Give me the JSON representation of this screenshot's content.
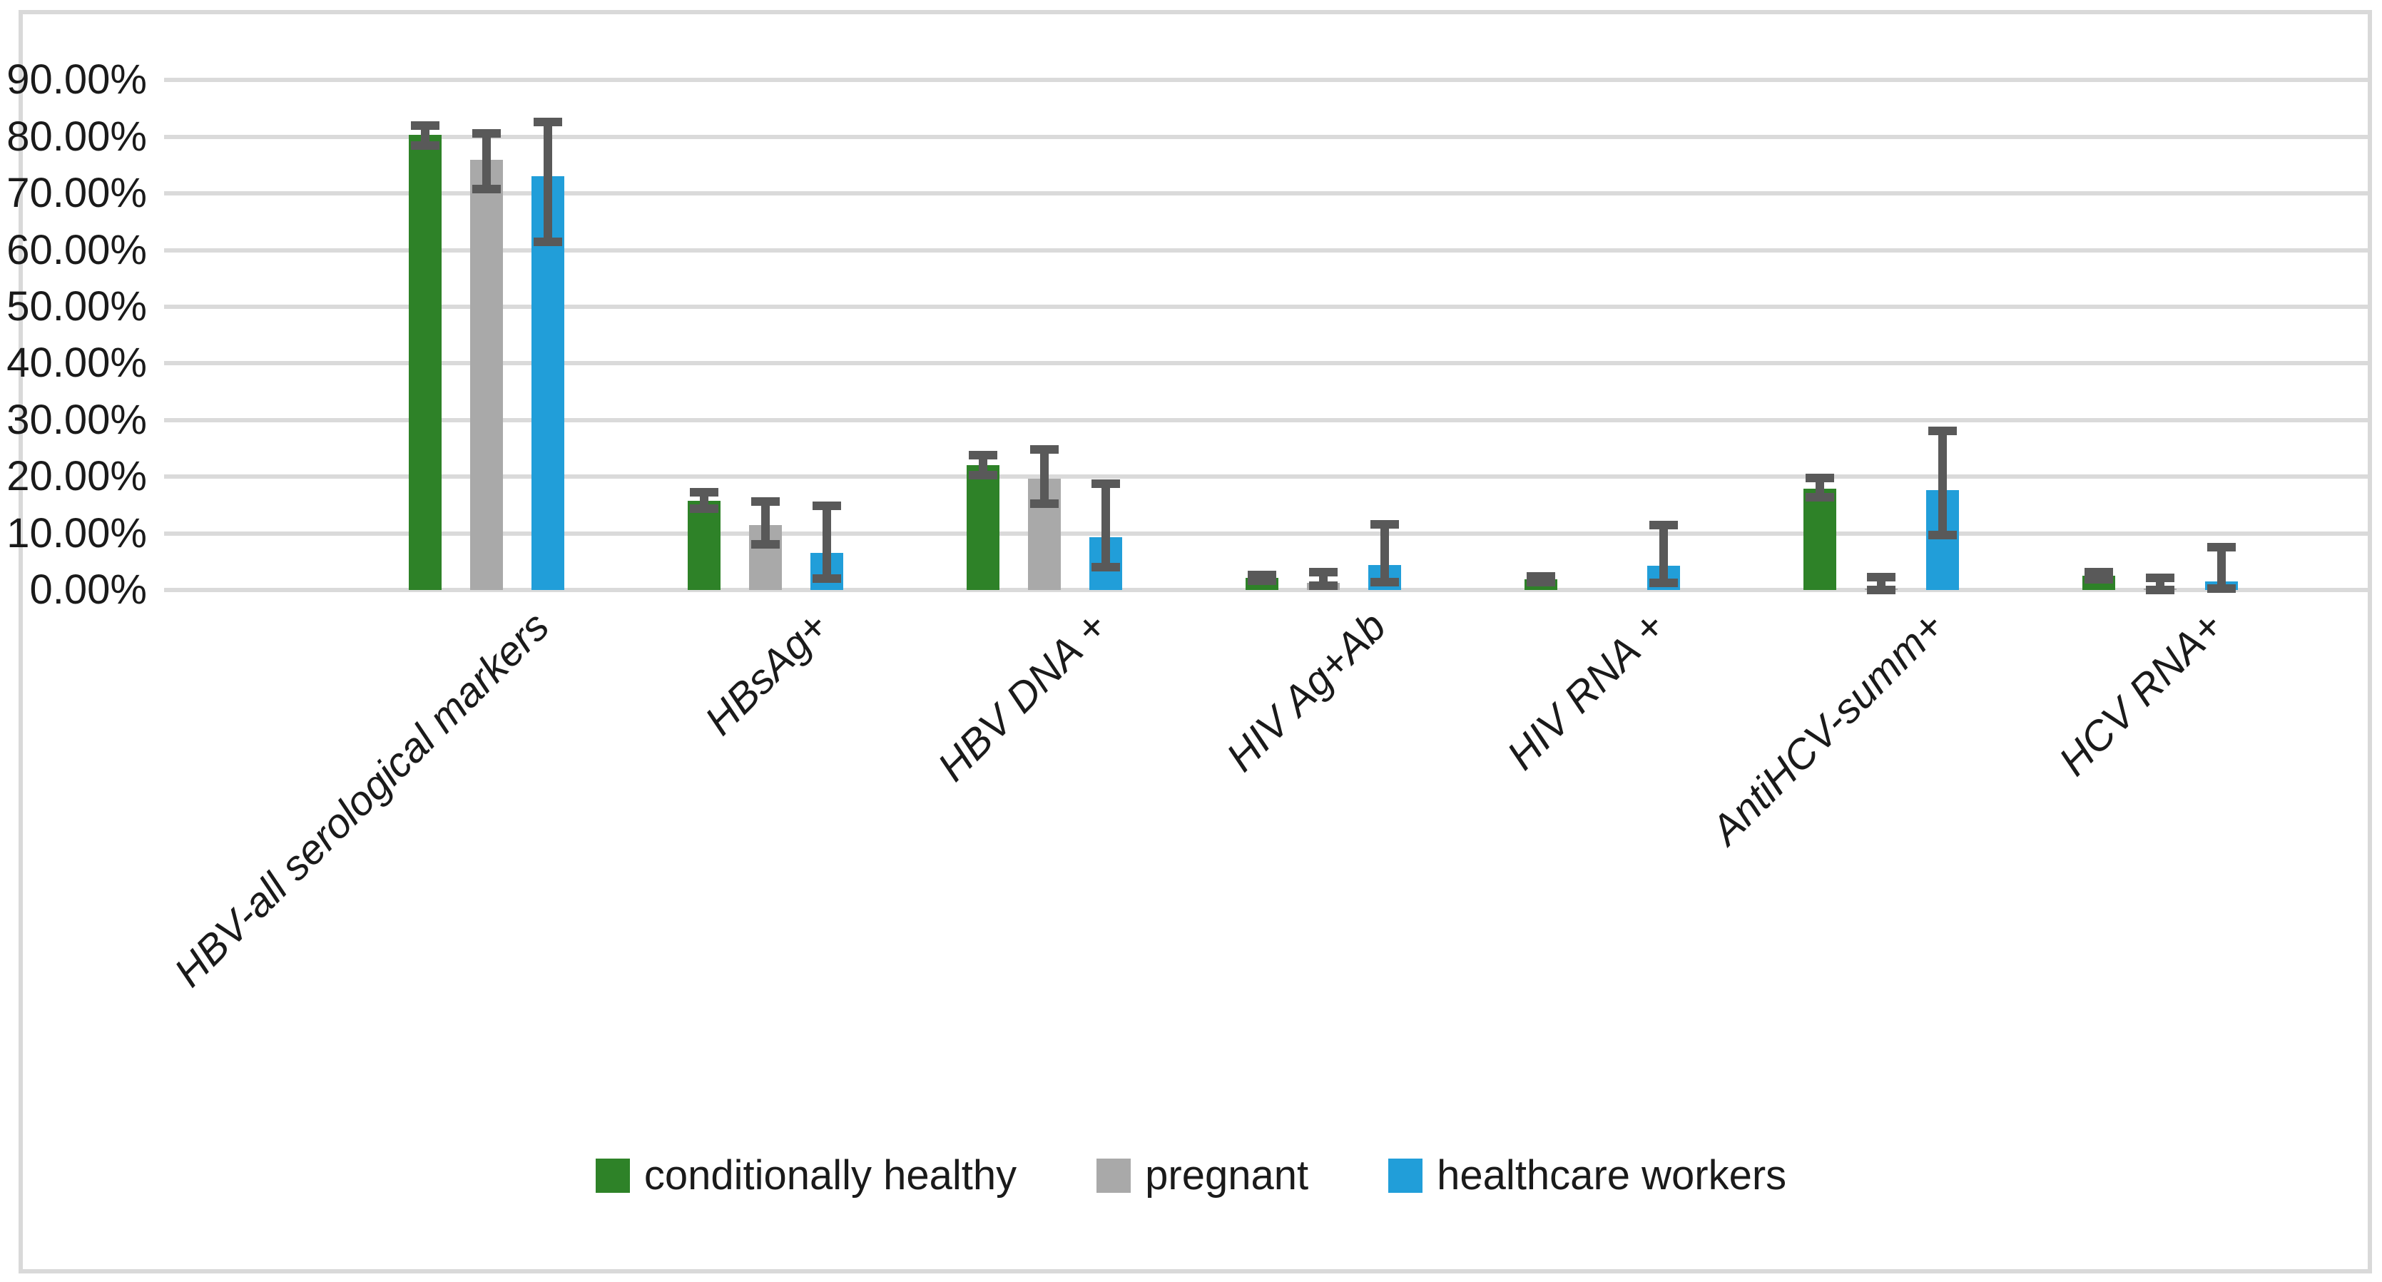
{
  "figure": {
    "background_color": "#ffffff",
    "border_color": "#d9d9d9"
  },
  "chart_data": {
    "type": "bar",
    "title": "",
    "xlabel": "",
    "ylabel": "",
    "categories": [
      "HBV-all serological markers",
      "HBsAg+",
      "HBV DNA +",
      "HIV Ag+Ab",
      "HIV RNA +",
      "AntiHCV-summ+",
      "HCV RNA+"
    ],
    "series": [
      {
        "name": "conditionally healthy",
        "color": "#2e8228",
        "values": [
          80.4,
          15.8,
          22.1,
          2.1,
          1.9,
          17.9,
          2.5
        ],
        "err_low": [
          78.5,
          14.3,
          20.3,
          1.6,
          1.4,
          16.4,
          1.9
        ],
        "err_high": [
          82.0,
          17.2,
          23.8,
          2.7,
          2.4,
          19.8,
          3.2
        ]
      },
      {
        "name": "pregnant",
        "color": "#a9a9a9",
        "values": [
          76.0,
          11.5,
          19.7,
          1.2,
          0,
          0.3,
          0.3
        ],
        "err_low": [
          70.8,
          8.1,
          15.2,
          0.7,
          null,
          0.0,
          0.0
        ],
        "err_high": [
          80.6,
          15.6,
          24.8,
          3.2,
          null,
          2.3,
          2.2
        ]
      },
      {
        "name": "healthcare workers",
        "color": "#219ed9",
        "values": [
          73.0,
          6.5,
          9.3,
          4.4,
          4.3,
          17.6,
          1.5
        ],
        "err_low": [
          61.4,
          2.0,
          4.0,
          1.4,
          1.2,
          9.7,
          0.3
        ],
        "err_high": [
          82.6,
          14.8,
          18.8,
          11.6,
          11.5,
          28.1,
          7.5
        ]
      }
    ],
    "error_bar_color": "#595959",
    "y_axis": {
      "min": 0,
      "max": 90,
      "step": 10,
      "unit": "%",
      "tick_labels": [
        "0.00%",
        "10.00%",
        "20.00%",
        "30.00%",
        "40.00%",
        "50.00%",
        "60.00%",
        "70.00%",
        "80.00%",
        "90.00%"
      ],
      "gridlines": true,
      "gridline_color": "#dadada"
    },
    "x_axis": {
      "label_rotation_deg": -45,
      "label_style": "italic"
    },
    "legend": {
      "position": "bottom",
      "labels": [
        "conditionally healthy",
        "pregnant",
        "healthcare workers"
      ]
    }
  }
}
